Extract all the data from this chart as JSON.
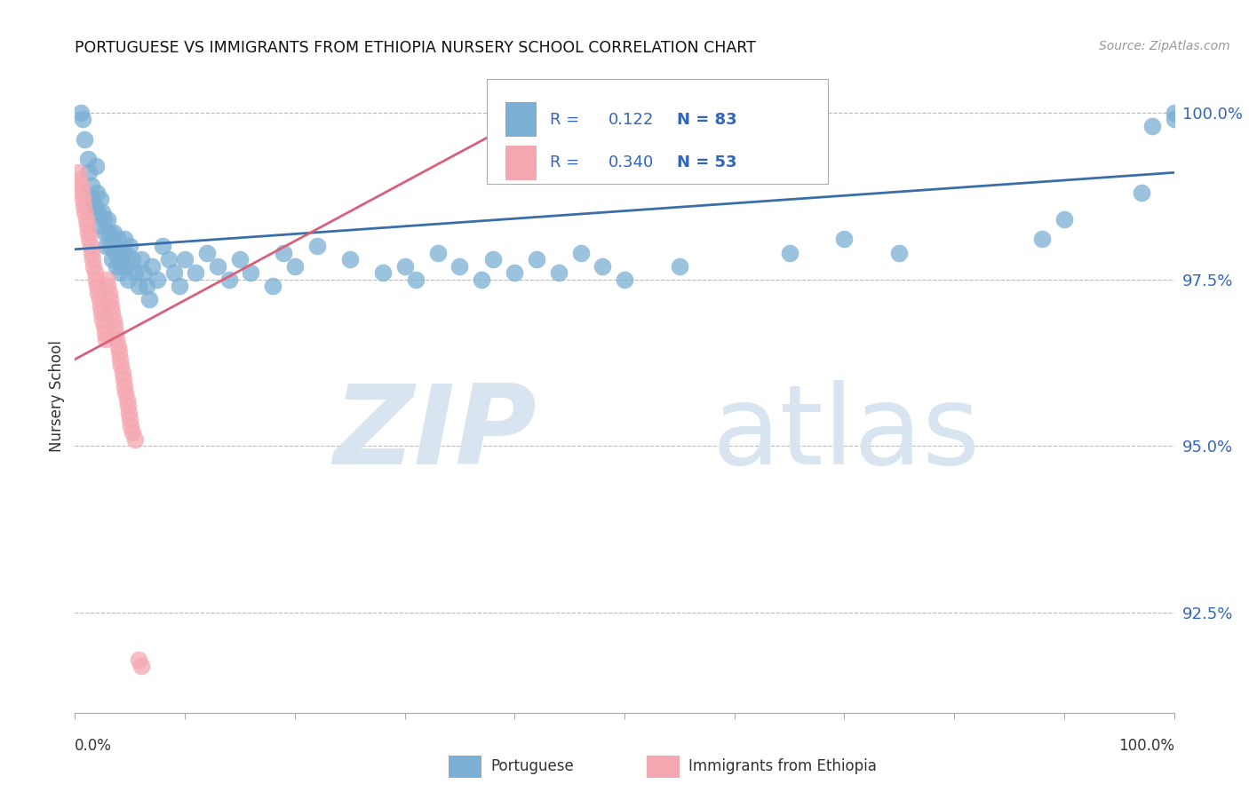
{
  "title": "PORTUGUESE VS IMMIGRANTS FROM ETHIOPIA NURSERY SCHOOL CORRELATION CHART",
  "source": "Source: ZipAtlas.com",
  "ylabel": "Nursery School",
  "R1": 0.122,
  "N1": 83,
  "R2": 0.34,
  "N2": 53,
  "color_blue": "#7BAFD4",
  "color_pink": "#F4A7B0",
  "line_color_blue": "#3A6EA8",
  "line_color_pink": "#D95F7A",
  "watermark_zip": "ZIP",
  "watermark_atlas": "atlas",
  "watermark_color": "#D8E4F0",
  "legend_label1": "Portuguese",
  "legend_label2": "Immigrants from Ethiopia",
  "xlim": [
    0.0,
    1.0
  ],
  "ylim": [
    0.91,
    1.005
  ],
  "ytick_values": [
    1.0,
    0.975,
    0.95,
    0.925
  ],
  "ytick_labels": [
    "100.0%",
    "97.5%",
    "95.0%",
    "92.5%"
  ],
  "blue_line_x0": 0.0,
  "blue_line_x1": 1.0,
  "blue_line_y0": 0.9795,
  "blue_line_y1": 0.991,
  "pink_line_x0": 0.0,
  "pink_line_x1": 0.44,
  "pink_line_y0": 0.963,
  "pink_line_y1": 1.002,
  "blue_x": [
    0.005,
    0.007,
    0.009,
    0.012,
    0.013,
    0.015,
    0.016,
    0.018,
    0.019,
    0.02,
    0.021,
    0.022,
    0.023,
    0.025,
    0.026,
    0.027,
    0.028,
    0.03,
    0.031,
    0.032,
    0.034,
    0.035,
    0.036,
    0.037,
    0.038,
    0.039,
    0.04,
    0.041,
    0.043,
    0.044,
    0.045,
    0.046,
    0.047,
    0.048,
    0.05,
    0.052,
    0.055,
    0.058,
    0.06,
    0.062,
    0.065,
    0.068,
    0.07,
    0.075,
    0.08,
    0.085,
    0.09,
    0.095,
    0.1,
    0.11,
    0.12,
    0.13,
    0.14,
    0.15,
    0.16,
    0.18,
    0.19,
    0.2,
    0.22,
    0.25,
    0.28,
    0.3,
    0.31,
    0.33,
    0.35,
    0.37,
    0.38,
    0.4,
    0.42,
    0.44,
    0.46,
    0.48,
    0.5,
    0.55,
    0.65,
    0.7,
    0.75,
    0.88,
    0.9,
    0.97,
    0.98,
    1.0,
    1.0
  ],
  "blue_y": [
    1.0,
    0.999,
    0.996,
    0.993,
    0.991,
    0.989,
    0.987,
    0.986,
    0.992,
    0.988,
    0.985,
    0.983,
    0.987,
    0.985,
    0.984,
    0.982,
    0.98,
    0.984,
    0.982,
    0.98,
    0.978,
    0.982,
    0.98,
    0.979,
    0.977,
    0.981,
    0.978,
    0.976,
    0.979,
    0.977,
    0.981,
    0.979,
    0.977,
    0.975,
    0.98,
    0.978,
    0.976,
    0.974,
    0.978,
    0.976,
    0.974,
    0.972,
    0.977,
    0.975,
    0.98,
    0.978,
    0.976,
    0.974,
    0.978,
    0.976,
    0.979,
    0.977,
    0.975,
    0.978,
    0.976,
    0.974,
    0.979,
    0.977,
    0.98,
    0.978,
    0.976,
    0.977,
    0.975,
    0.979,
    0.977,
    0.975,
    0.978,
    0.976,
    0.978,
    0.976,
    0.979,
    0.977,
    0.975,
    0.977,
    0.979,
    0.981,
    0.979,
    0.981,
    0.984,
    0.988,
    0.998,
    0.999,
    1.0
  ],
  "pink_x": [
    0.003,
    0.004,
    0.005,
    0.006,
    0.007,
    0.008,
    0.009,
    0.01,
    0.011,
    0.012,
    0.013,
    0.014,
    0.015,
    0.016,
    0.017,
    0.018,
    0.019,
    0.02,
    0.021,
    0.022,
    0.023,
    0.024,
    0.025,
    0.026,
    0.027,
    0.028,
    0.029,
    0.03,
    0.031,
    0.032,
    0.033,
    0.034,
    0.035,
    0.036,
    0.037,
    0.038,
    0.039,
    0.04,
    0.041,
    0.042,
    0.043,
    0.044,
    0.045,
    0.046,
    0.047,
    0.048,
    0.049,
    0.05,
    0.051,
    0.052,
    0.055,
    0.058,
    0.06
  ],
  "pink_y": [
    0.991,
    0.99,
    0.989,
    0.988,
    0.987,
    0.986,
    0.985,
    0.984,
    0.983,
    0.982,
    0.981,
    0.98,
    0.979,
    0.978,
    0.977,
    0.976,
    0.975,
    0.974,
    0.973,
    0.972,
    0.971,
    0.97,
    0.969,
    0.968,
    0.967,
    0.966,
    0.975,
    0.974,
    0.973,
    0.972,
    0.971,
    0.97,
    0.969,
    0.968,
    0.967,
    0.966,
    0.965,
    0.964,
    0.963,
    0.962,
    0.961,
    0.96,
    0.959,
    0.958,
    0.957,
    0.956,
    0.955,
    0.954,
    0.953,
    0.952,
    0.951,
    0.918,
    0.917
  ]
}
